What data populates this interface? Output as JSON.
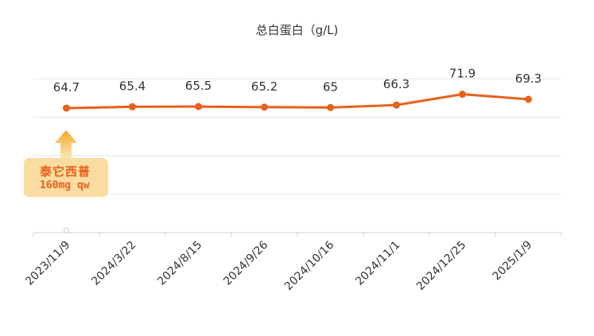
{
  "chart_data": {
    "type": "line",
    "title": "总白蛋白（g/L)",
    "xlabel": "",
    "ylabel": "",
    "categories": [
      "2023/11/9",
      "2024/3/22",
      "2024/8/15",
      "2024/9/26",
      "2024/10/16",
      "2024/11/1",
      "2024/12/25",
      "2025/1/9"
    ],
    "series": [
      {
        "name": "总白蛋白",
        "values": [
          64.7,
          65.4,
          65.5,
          65.2,
          65,
          66.3,
          71.9,
          69.3
        ],
        "color": "#e8611b"
      }
    ],
    "value_labels": [
      "64.7",
      "65.4",
      "65.5",
      "65.2",
      "65",
      "66.3",
      "71.9",
      "69.3"
    ],
    "ylim": [
      0,
      80
    ],
    "grid": true,
    "y_axis_labels_visible": false,
    "legend": null,
    "annotations": [
      {
        "x": "2023/11/9",
        "text_line1": "泰它西普",
        "text_line2": "160mg qw",
        "background": "#fbdca0",
        "text_color": "#e8611b",
        "arrow_color": "#f5b43a"
      }
    ]
  },
  "title": "总白蛋白（g/L)",
  "annotation": {
    "drug": "泰它西普",
    "dose": "160mg qw"
  }
}
